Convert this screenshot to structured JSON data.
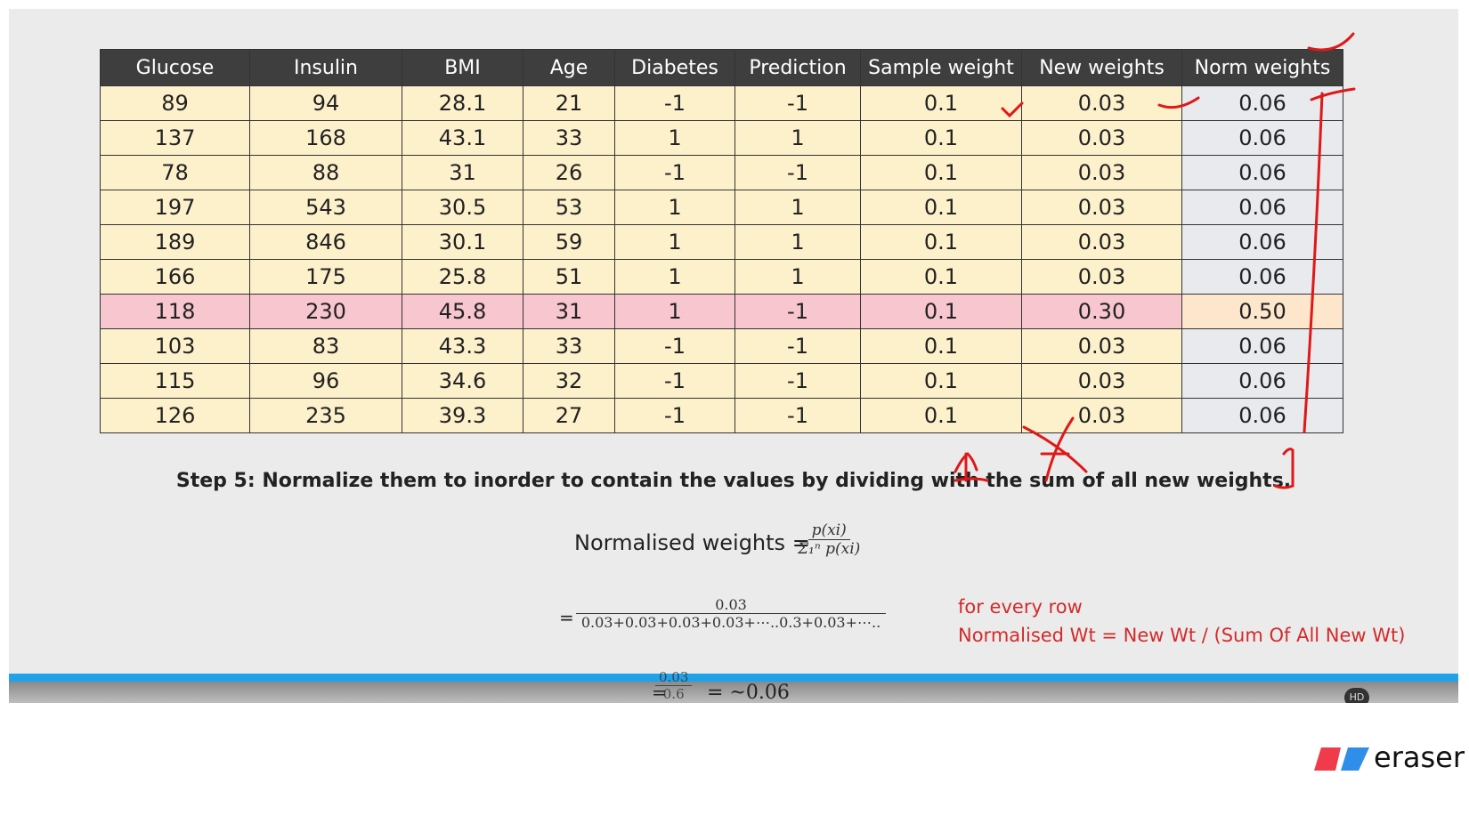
{
  "table": {
    "header": [
      "Glucose",
      "Insulin",
      "BMI",
      "Age",
      "Diabetes",
      "Prediction",
      "Sample weight",
      "New weights",
      "Norm weights"
    ],
    "rows": [
      [
        "89",
        "94",
        "28.1",
        "21",
        "-1",
        "-1",
        "0.1",
        "0.03",
        "0.06"
      ],
      [
        "137",
        "168",
        "43.1",
        "33",
        "1",
        "1",
        "0.1",
        "0.03",
        "0.06"
      ],
      [
        "78",
        "88",
        "31",
        "26",
        "-1",
        "-1",
        "0.1",
        "0.03",
        "0.06"
      ],
      [
        "197",
        "543",
        "30.5",
        "53",
        "1",
        "1",
        "0.1",
        "0.03",
        "0.06"
      ],
      [
        "189",
        "846",
        "30.1",
        "59",
        "1",
        "1",
        "0.1",
        "0.03",
        "0.06"
      ],
      [
        "166",
        "175",
        "25.8",
        "51",
        "1",
        "1",
        "0.1",
        "0.03",
        "0.06"
      ],
      [
        "118",
        "230",
        "45.8",
        "31",
        "1",
        "-1",
        "0.1",
        "0.30",
        "0.50"
      ],
      [
        "103",
        "83",
        "43.3",
        "33",
        "-1",
        "-1",
        "0.1",
        "0.03",
        "0.06"
      ],
      [
        "115",
        "96",
        "34.6",
        "32",
        "-1",
        "-1",
        "0.1",
        "0.03",
        "0.06"
      ],
      [
        "126",
        "235",
        "39.3",
        "27",
        "-1",
        "-1",
        "0.1",
        "0.03",
        "0.06"
      ]
    ]
  },
  "step": "Step 5: Normalize them to inorder to contain the values by dividing with the sum of all new weights.",
  "formula1": {
    "lhs": "Normalised weights =",
    "numerator": "p(xi)",
    "denominator": "Σ₁ⁿ p(xi)"
  },
  "formula2": {
    "lhs": "=",
    "numerator": "0.03",
    "denominator": "0.03+0.03+0.03+0.03+⋯..0.3+0.03+⋯.."
  },
  "formula3": {
    "lhs": "=",
    "numerator": "0.03",
    "denominator": "0.6",
    "result": "= ~0.06"
  },
  "annotation": [
    "for every row",
    "Normalised Wt = New Wt / (Sum Of All New Wt)"
  ],
  "badge": "HD",
  "logo": "eraser"
}
